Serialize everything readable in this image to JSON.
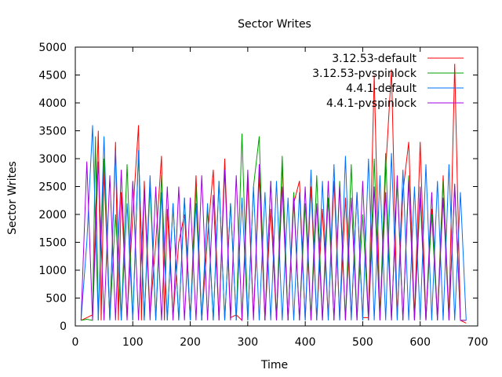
{
  "chart_data": {
    "type": "line",
    "title": "Sector Writes",
    "xlabel": "Time",
    "ylabel": "Sector Writes",
    "xlim": [
      0,
      700
    ],
    "ylim": [
      0,
      5000
    ],
    "x_ticks": [
      0,
      100,
      200,
      300,
      400,
      500,
      600,
      700
    ],
    "y_ticks": [
      0,
      500,
      1000,
      1500,
      2000,
      2500,
      3000,
      3500,
      4000,
      4500,
      5000
    ],
    "grid": false,
    "legend_position": "top-right",
    "series": [
      {
        "name": "3.12.53-default",
        "color": "#ff0000",
        "x": [
          10,
          20,
          30,
          40,
          45,
          50,
          60,
          70,
          75,
          80,
          90,
          100,
          110,
          115,
          120,
          130,
          140,
          150,
          155,
          160,
          170,
          180,
          190,
          200,
          210,
          220,
          230,
          240,
          250,
          260,
          270,
          280,
          290,
          300,
          310,
          320,
          330,
          340,
          350,
          360,
          370,
          380,
          390,
          400,
          410,
          420,
          430,
          440,
          450,
          460,
          470,
          480,
          490,
          500,
          510,
          520,
          530,
          540,
          550,
          560,
          570,
          580,
          590,
          600,
          610,
          620,
          630,
          640,
          650,
          660,
          670,
          680
        ],
        "y": [
          100,
          150,
          200,
          3500,
          100,
          2800,
          100,
          3300,
          100,
          2400,
          150,
          2000,
          3600,
          100,
          2600,
          200,
          1500,
          3050,
          100,
          2100,
          150,
          1500,
          2000,
          100,
          2700,
          100,
          1600,
          2800,
          100,
          3000,
          150,
          200,
          100,
          2600,
          150,
          2700,
          100,
          2100,
          100,
          2900,
          100,
          2200,
          2600,
          100,
          2500,
          100,
          2100,
          150,
          2600,
          100,
          2300,
          150,
          2400,
          150,
          150,
          4500,
          150,
          2800,
          4600,
          150,
          2400,
          3300,
          150,
          3300,
          100,
          2100,
          150,
          2700,
          150,
          4700,
          100,
          50
        ]
      },
      {
        "name": "3.12.53-pvspinlock",
        "color": "#00a000",
        "x": [
          10,
          20,
          30,
          35,
          40,
          50,
          60,
          70,
          80,
          90,
          100,
          110,
          120,
          130,
          140,
          150,
          160,
          170,
          180,
          190,
          200,
          210,
          220,
          230,
          240,
          250,
          260,
          270,
          280,
          290,
          300,
          310,
          320,
          330,
          340,
          350,
          360,
          370,
          380,
          390,
          400,
          410,
          420,
          430,
          440,
          450,
          460,
          470,
          480,
          490,
          500,
          510,
          520,
          530,
          540,
          550,
          560,
          570,
          580,
          590,
          600,
          610,
          620,
          630,
          640,
          650,
          660,
          670,
          680
        ],
        "y": [
          100,
          120,
          100,
          3400,
          100,
          3000,
          100,
          2000,
          100,
          2900,
          100,
          3100,
          100,
          2500,
          100,
          2700,
          100,
          2200,
          100,
          2300,
          100,
          2500,
          100,
          2100,
          100,
          2600,
          100,
          2200,
          100,
          3450,
          100,
          2500,
          3400,
          100,
          2600,
          100,
          3050,
          100,
          2400,
          100,
          2200,
          100,
          2700,
          100,
          2300,
          100,
          2600,
          100,
          2900,
          100,
          2000,
          100,
          3000,
          100,
          3100,
          100,
          2600,
          100,
          2700,
          100,
          2300,
          100,
          2000,
          100,
          2600,
          100,
          2500,
          100,
          100
        ]
      },
      {
        "name": "4.4.1-default",
        "color": "#0070ff",
        "x": [
          10,
          20,
          30,
          40,
          50,
          60,
          70,
          80,
          90,
          100,
          110,
          120,
          130,
          140,
          150,
          160,
          170,
          180,
          190,
          200,
          210,
          220,
          230,
          240,
          250,
          260,
          270,
          280,
          290,
          300,
          310,
          320,
          330,
          340,
          350,
          360,
          370,
          380,
          390,
          400,
          410,
          420,
          430,
          440,
          450,
          460,
          470,
          480,
          490,
          500,
          510,
          520,
          530,
          540,
          550,
          560,
          570,
          580,
          590,
          600,
          610,
          620,
          630,
          640,
          650,
          660,
          670,
          680
        ],
        "y": [
          100,
          1500,
          3600,
          100,
          3400,
          100,
          3150,
          100,
          2200,
          100,
          3150,
          100,
          2700,
          100,
          2400,
          100,
          2200,
          100,
          2300,
          100,
          2200,
          100,
          2200,
          100,
          2600,
          100,
          2200,
          100,
          2300,
          100,
          2500,
          100,
          2400,
          100,
          2600,
          100,
          2300,
          100,
          2400,
          100,
          2800,
          100,
          2600,
          100,
          2900,
          100,
          3050,
          100,
          2400,
          100,
          3000,
          100,
          2700,
          100,
          3100,
          100,
          2800,
          100,
          2500,
          100,
          2900,
          100,
          2600,
          100,
          2900,
          100,
          2400,
          100
        ]
      },
      {
        "name": "4.4.1-pvspinlock",
        "color": "#a000e0",
        "x": [
          10,
          20,
          30,
          40,
          50,
          60,
          70,
          80,
          90,
          100,
          110,
          120,
          130,
          140,
          150,
          160,
          170,
          180,
          190,
          200,
          210,
          220,
          230,
          240,
          250,
          260,
          270,
          280,
          290,
          300,
          310,
          320,
          330,
          340,
          350,
          360,
          370,
          380,
          390,
          400,
          410,
          420,
          430,
          440,
          450,
          460,
          470,
          480,
          490,
          500,
          510,
          520,
          530,
          540,
          550,
          560,
          570,
          580,
          590,
          600,
          610,
          620,
          630,
          640,
          650,
          660,
          670,
          680
        ],
        "y": [
          100,
          2950,
          100,
          2950,
          100,
          2700,
          100,
          2800,
          100,
          2600,
          100,
          2450,
          100,
          2500,
          100,
          2500,
          100,
          2500,
          100,
          2300,
          100,
          2700,
          100,
          2350,
          100,
          2800,
          100,
          2700,
          100,
          2800,
          100,
          2900,
          100,
          2600,
          100,
          2500,
          100,
          2300,
          100,
          2500,
          100,
          2200,
          100,
          2600,
          100,
          2500,
          100,
          2300,
          100,
          2600,
          100,
          2500,
          100,
          2400,
          100,
          2700,
          100,
          2600,
          100,
          2500,
          100,
          2400,
          100,
          2300,
          100,
          2550,
          100,
          100
        ]
      }
    ]
  }
}
